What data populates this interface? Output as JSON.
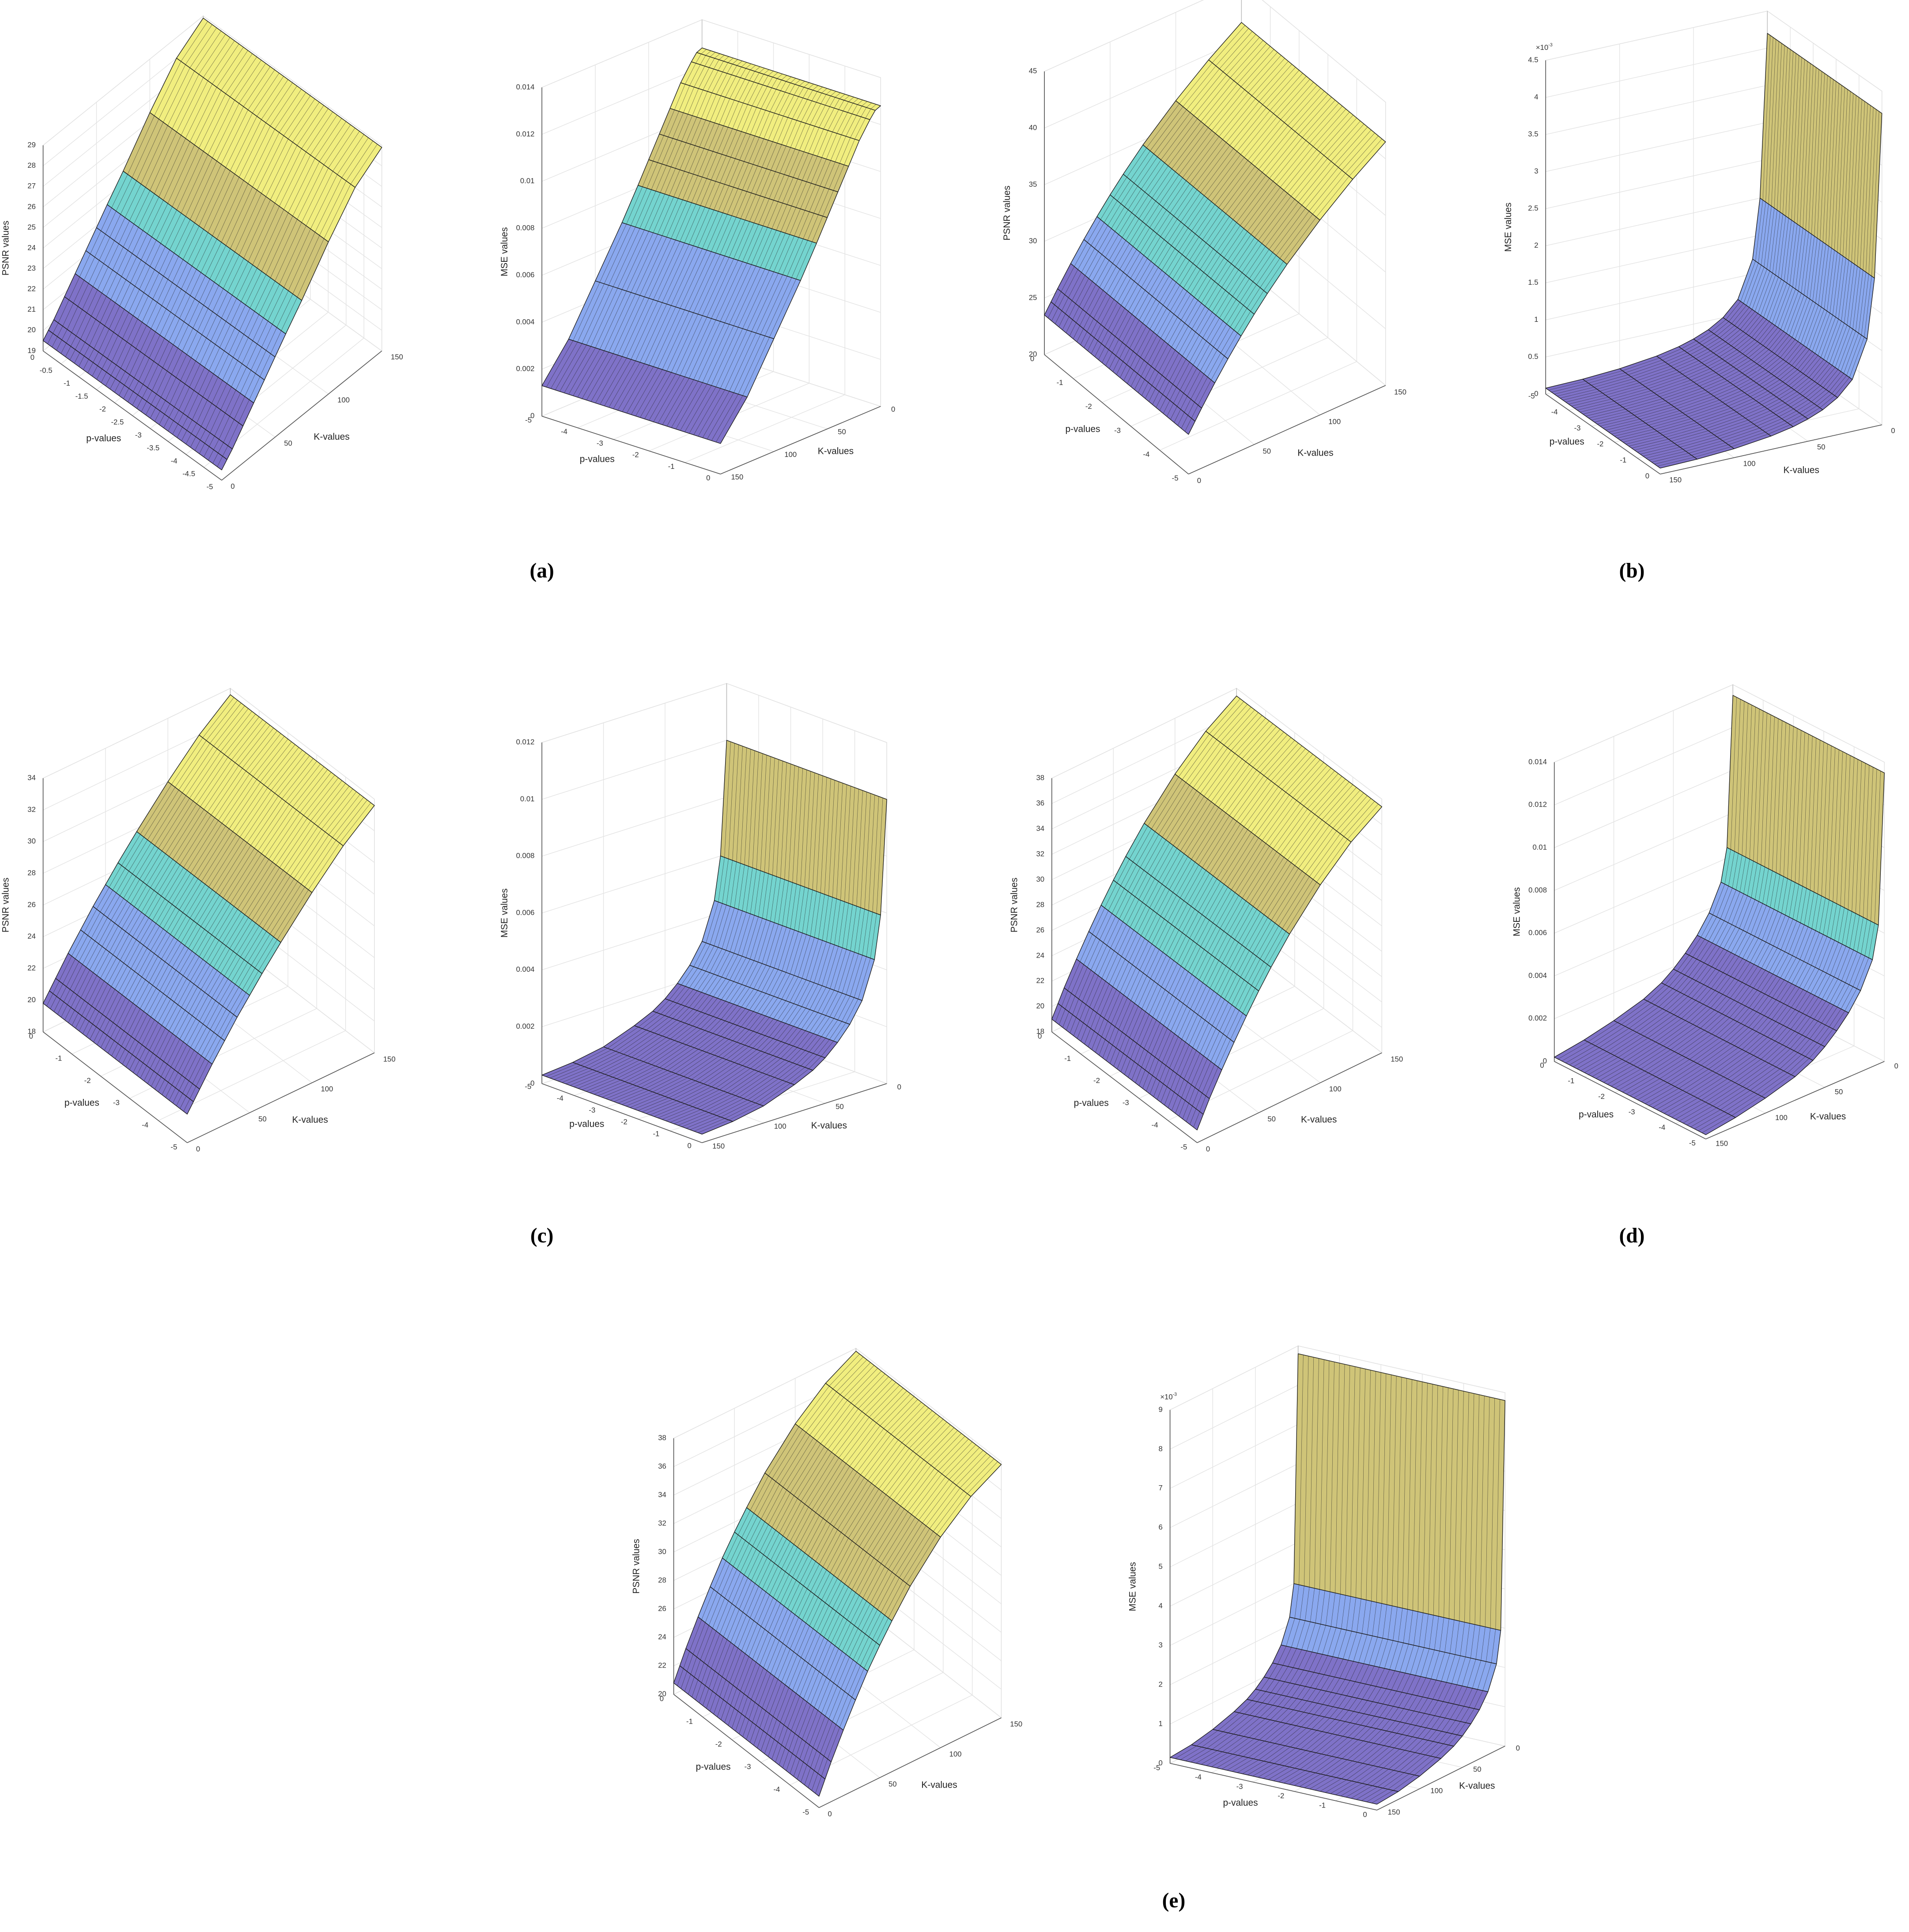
{
  "band_colors": [
    "#7f72c8",
    "#8aa8ef",
    "#74d4cf",
    "#cfc478",
    "#f1ee7f"
  ],
  "panels": [
    {
      "label": "(a)"
    },
    {
      "label": "(b)"
    },
    {
      "label": "(c)"
    },
    {
      "label": "(d)"
    },
    {
      "label": "(e)"
    }
  ],
  "chart_data": [
    {
      "type": "surface3d",
      "zlabel": "PSNR values",
      "plabel": "p-values",
      "klabel": "K-values",
      "plim": [
        -5,
        0
      ],
      "pticks": [
        0,
        -0.5,
        -1,
        -1.5,
        -2,
        -2.5,
        -3,
        -3.5,
        -4,
        -4.5,
        -5
      ],
      "klim": [
        0,
        150
      ],
      "kticks": [
        0,
        50,
        100,
        150
      ],
      "zlim": [
        19,
        29
      ],
      "zticks": [
        19,
        20,
        21,
        22,
        23,
        24,
        25,
        26,
        27,
        28,
        29
      ],
      "k": [
        0,
        5,
        10,
        20,
        30,
        40,
        50,
        60,
        75,
        100,
        125,
        150
      ],
      "values": [
        19.5,
        19.8,
        20.1,
        20.8,
        21.5,
        22.2,
        22.9,
        23.6,
        24.6,
        26.4,
        28,
        28.9
      ]
    },
    {
      "type": "surface3d",
      "zlabel": "MSE values",
      "plabel": "p-values",
      "klabel": "K-values",
      "plim": [
        -5,
        0
      ],
      "pticks": [
        -5,
        -4,
        -3,
        -2,
        -1,
        0
      ],
      "klim": [
        0,
        150
      ],
      "kticks": [
        0,
        50,
        100,
        150
      ],
      "zlim": [
        0,
        0.014
      ],
      "zticks": [
        0,
        0.002,
        0.004,
        0.006,
        0.008,
        0.01,
        0.012,
        0.014
      ],
      "k": [
        0,
        5,
        10,
        20,
        30,
        40,
        50,
        60,
        75,
        100,
        125,
        150
      ],
      "values": [
        0.0128,
        0.0127,
        0.0124,
        0.0117,
        0.0108,
        0.0099,
        0.009,
        0.0081,
        0.0068,
        0.0048,
        0.0028,
        0.0013
      ]
    },
    {
      "type": "surface3d",
      "zlabel": "PSNR values",
      "plabel": "p-values",
      "klabel": "K-values",
      "plim": [
        -5,
        0
      ],
      "pticks": [
        -5,
        -4,
        -3,
        -2,
        -1,
        0
      ],
      "klim": [
        0,
        150
      ],
      "kticks": [
        0,
        50,
        100,
        150
      ],
      "zlim": [
        20,
        45
      ],
      "zticks": [
        20,
        25,
        30,
        35,
        40,
        45
      ],
      "k": [
        0,
        5,
        10,
        20,
        30,
        40,
        50,
        60,
        75,
        100,
        125,
        150
      ],
      "values": [
        23.5,
        24.4,
        25.3,
        27,
        28.6,
        30.1,
        31.5,
        32.8,
        34.6,
        37.2,
        39.5,
        41.5
      ]
    },
    {
      "type": "surface3d",
      "zlabel": "MSE values",
      "plabel": "p-values",
      "klabel": "K-values",
      "exponent": {
        "base": "×10",
        "power": "-3"
      },
      "plim": [
        -5,
        0
      ],
      "pticks": [
        -5,
        -4,
        -3,
        -2,
        -1,
        0
      ],
      "klim": [
        0,
        150
      ],
      "kticks": [
        0,
        50,
        100,
        150
      ],
      "zlim": [
        0,
        4.5
      ],
      "zticks": [
        0,
        0.5,
        1,
        1.5,
        2,
        2.5,
        3,
        3.5,
        4,
        4.5
      ],
      "k": [
        0,
        5,
        10,
        20,
        30,
        40,
        50,
        60,
        75,
        100,
        125,
        150
      ],
      "values": [
        4.2,
        2.0,
        1.2,
        0.7,
        0.5,
        0.38,
        0.3,
        0.24,
        0.18,
        0.12,
        0.09,
        0.08
      ]
    },
    {
      "type": "surface3d",
      "zlabel": "PSNR values",
      "plabel": "p-values",
      "klabel": "K-values",
      "plim": [
        -5,
        0
      ],
      "pticks": [
        -5,
        -4,
        -3,
        -2,
        -1,
        0
      ],
      "klim": [
        0,
        150
      ],
      "kticks": [
        0,
        50,
        100,
        150
      ],
      "zlim": [
        18,
        34
      ],
      "zticks": [
        18,
        20,
        22,
        24,
        26,
        28,
        30,
        32,
        34
      ],
      "k": [
        0,
        5,
        10,
        20,
        30,
        40,
        50,
        60,
        75,
        100,
        125,
        150
      ],
      "values": [
        19.8,
        20.4,
        21,
        22.2,
        23.3,
        24.4,
        25.4,
        26.4,
        27.8,
        30,
        32,
        33.6
      ]
    },
    {
      "type": "surface3d",
      "zlabel": "MSE values",
      "plabel": "p-values",
      "klabel": "K-values",
      "plim": [
        -5,
        0
      ],
      "pticks": [
        -5,
        -4,
        -3,
        -2,
        -1,
        0
      ],
      "klim": [
        0,
        150
      ],
      "kticks": [
        0,
        50,
        100,
        150
      ],
      "zlim": [
        0,
        0.012
      ],
      "zticks": [
        0,
        0.002,
        0.004,
        0.006,
        0.008,
        0.01,
        0.012
      ],
      "k": [
        0,
        5,
        10,
        20,
        30,
        40,
        50,
        60,
        75,
        100,
        125,
        150
      ],
      "values": [
        0.01,
        0.006,
        0.0045,
        0.0032,
        0.0025,
        0.002,
        0.0016,
        0.0013,
        0.001,
        0.0006,
        0.0004,
        0.0003
      ]
    },
    {
      "type": "surface3d",
      "zlabel": "PSNR values",
      "plabel": "p-values",
      "klabel": "K-values",
      "plim": [
        -5,
        0
      ],
      "pticks": [
        -5,
        -4,
        -3,
        -2,
        -1,
        0
      ],
      "klim": [
        0,
        150
      ],
      "kticks": [
        0,
        50,
        100,
        150
      ],
      "zlim": [
        18,
        38
      ],
      "zticks": [
        18,
        20,
        22,
        24,
        26,
        28,
        30,
        32,
        34,
        36,
        38
      ],
      "k": [
        0,
        5,
        10,
        20,
        30,
        40,
        50,
        60,
        75,
        100,
        125,
        150
      ],
      "values": [
        19,
        20,
        21,
        22.8,
        24.5,
        26.1,
        27.6,
        29,
        30.9,
        33.6,
        35.8,
        37.4
      ]
    },
    {
      "type": "surface3d",
      "zlabel": "MSE values",
      "plabel": "p-values",
      "klabel": "K-values",
      "plim": [
        -5,
        0
      ],
      "pticks": [
        -5,
        -4,
        -3,
        -2,
        -1,
        0
      ],
      "klim": [
        0,
        150
      ],
      "kticks": [
        0,
        50,
        100,
        150
      ],
      "zlim": [
        0,
        0.014
      ],
      "zticks": [
        0,
        0.002,
        0.004,
        0.006,
        0.008,
        0.01,
        0.012,
        0.014
      ],
      "k": [
        0,
        5,
        10,
        20,
        30,
        40,
        50,
        60,
        75,
        100,
        125,
        150
      ],
      "values": [
        0.0135,
        0.0065,
        0.005,
        0.0038,
        0.003,
        0.0024,
        0.0019,
        0.0015,
        0.0011,
        0.0007,
        0.0004,
        0.0002
      ]
    },
    {
      "type": "surface3d",
      "zlabel": "PSNR values",
      "plabel": "p-values",
      "klabel": "K-values",
      "plim": [
        -5,
        0
      ],
      "pticks": [
        -5,
        -4,
        -3,
        -2,
        -1,
        0
      ],
      "klim": [
        0,
        150
      ],
      "kticks": [
        0,
        50,
        100,
        150
      ],
      "zlim": [
        20,
        38
      ],
      "zticks": [
        20,
        22,
        24,
        26,
        28,
        30,
        32,
        34,
        36,
        38
      ],
      "k": [
        0,
        5,
        10,
        20,
        30,
        40,
        50,
        60,
        75,
        100,
        125,
        150
      ],
      "values": [
        20.8,
        21.8,
        22.8,
        24.6,
        26.3,
        27.9,
        29.3,
        30.6,
        32.4,
        34.8,
        36.6,
        37.8
      ]
    },
    {
      "type": "surface3d",
      "zlabel": "MSE values",
      "plabel": "p-values",
      "klabel": "K-values",
      "exponent": {
        "base": "×10",
        "power": "-3"
      },
      "plim": [
        -5,
        0
      ],
      "pticks": [
        -5,
        -4,
        -3,
        -2,
        -1,
        0
      ],
      "klim": [
        0,
        150
      ],
      "kticks": [
        0,
        50,
        100,
        150
      ],
      "zlim": [
        0,
        9
      ],
      "zticks": [
        0,
        1,
        2,
        3,
        4,
        5,
        6,
        7,
        8,
        9
      ],
      "k": [
        0,
        5,
        10,
        20,
        30,
        40,
        50,
        60,
        75,
        100,
        125,
        150
      ],
      "values": [
        8.8,
        3.0,
        2.2,
        1.6,
        1.25,
        1.0,
        0.8,
        0.65,
        0.5,
        0.32,
        0.2,
        0.15
      ]
    }
  ]
}
